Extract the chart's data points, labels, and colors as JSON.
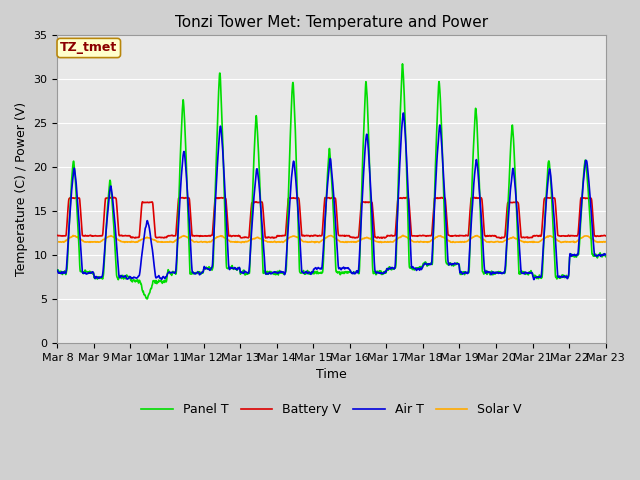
{
  "title": "Tonzi Tower Met: Temperature and Power",
  "xlabel": "Time",
  "ylabel": "Temperature (C) / Power (V)",
  "ylim": [
    0,
    35
  ],
  "x_tick_labels": [
    "Mar 8",
    "Mar 9",
    "Mar 10",
    "Mar 11",
    "Mar 12",
    "Mar 13",
    "Mar 14",
    "Mar 15",
    "Mar 16",
    "Mar 17",
    "Mar 18",
    "Mar 19",
    "Mar 20",
    "Mar 21",
    "Mar 22",
    "Mar 23"
  ],
  "annotation_text": "TZ_tmet",
  "annotation_color": "#8b0000",
  "annotation_bg": "#ffffcc",
  "annotation_border": "#b8860b",
  "fig_bg": "#d0d0d0",
  "plot_bg": "#e8e8e8",
  "grid_color": "#ffffff",
  "legend_labels": [
    "Panel T",
    "Battery V",
    "Air T",
    "Solar V"
  ],
  "line_colors": [
    "#00dd00",
    "#dd0000",
    "#0000dd",
    "#ffaa00"
  ],
  "line_width": 1.2,
  "title_fontsize": 11,
  "label_fontsize": 9,
  "tick_fontsize": 8
}
